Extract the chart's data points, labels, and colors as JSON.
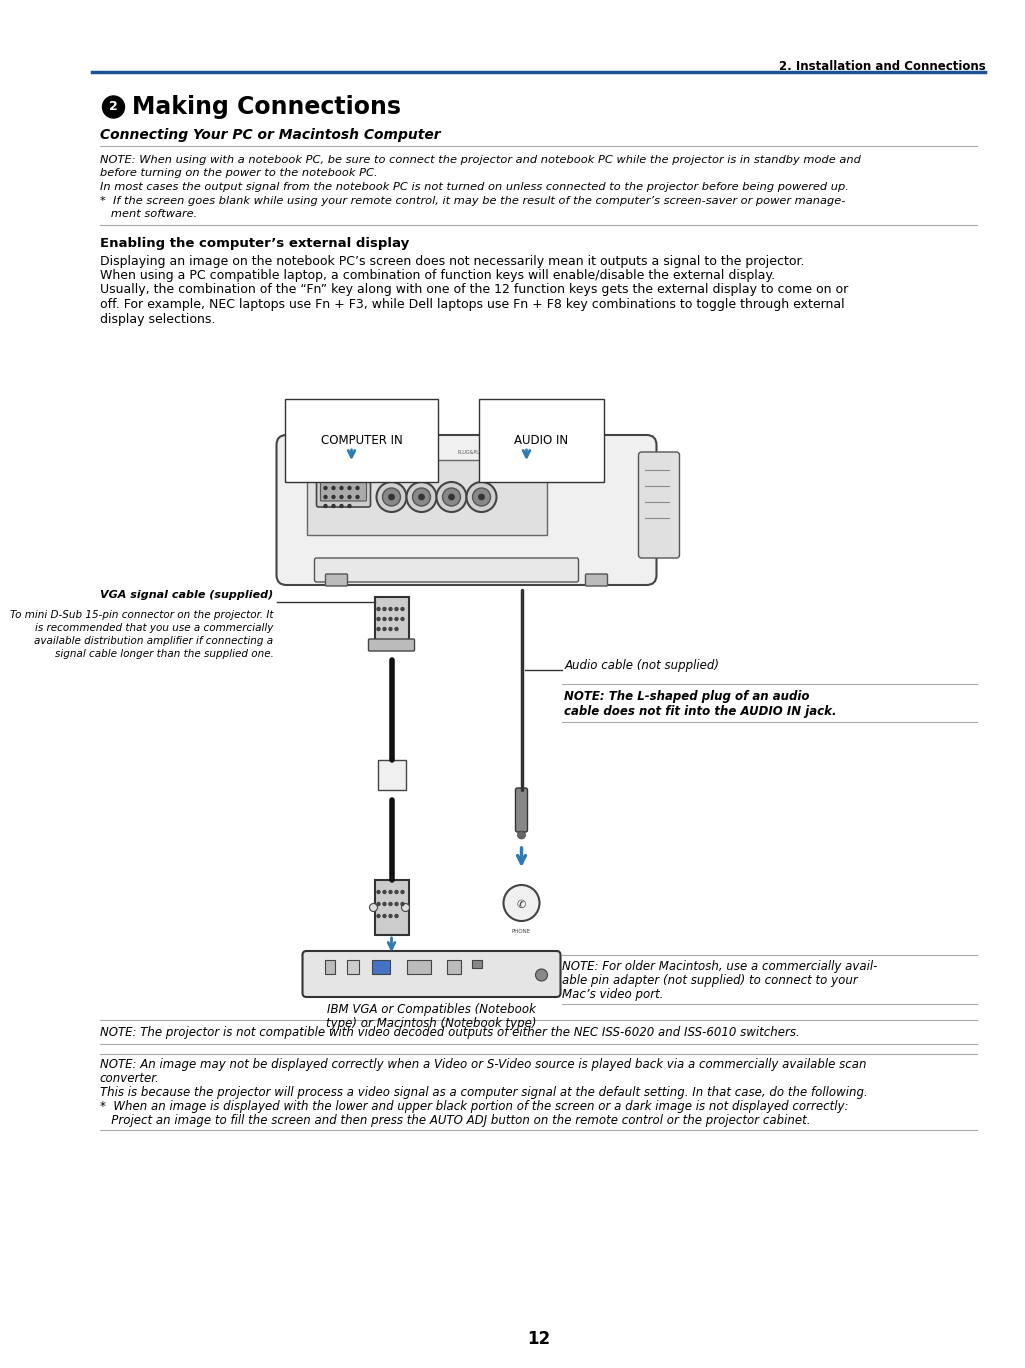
{
  "header_right": "2. Installation and Connections",
  "header_line_color": "#1a5294",
  "title": "❙ Making Connections",
  "subtitle": "Connecting Your PC or Macintosh Computer",
  "note1_lines": [
    "NOTE: When using with a notebook PC, be sure to connect the projector and notebook PC while the projector is in standby mode and",
    "before turning on the power to the notebook PC.",
    "In most cases the output signal from the notebook PC is not turned on unless connected to the projector before being powered up.",
    "*  If the screen goes blank while using your remote control, it may be the result of the computer’s screen-saver or power manage-",
    "   ment software."
  ],
  "section_head": "Enabling the computer’s external display",
  "body_lines": [
    "Displaying an image on the notebook PC’s screen does not necessarily mean it outputs a signal to the projector.",
    "When using a PC compatible laptop, a combination of function keys will enable/disable the external display.",
    "Usually, the combination of the “Fn” key along with one of the 12 function keys gets the external display to come on or",
    "off. For example, NEC laptops use Fn + F3, while Dell laptops use Fn + F8 key combinations to toggle through external",
    "display selections."
  ],
  "label_computer_in": "COMPUTER IN",
  "label_audio_in": "AUDIO IN",
  "vga_label_bold": "VGA signal cable (supplied)",
  "vga_label_lines": [
    "To mini D-Sub 15-pin connector on the projector. It",
    "is recommended that you use a commercially",
    "available distribution amplifier if connecting a",
    "signal cable longer than the supplied one."
  ],
  "audio_label": "Audio cable (not supplied)",
  "audio_note_lines": [
    "NOTE: The L-shaped plug of an audio",
    "cable does not fit into the AUDIO IN jack."
  ],
  "ibm_label_lines": [
    "IBM VGA or Compatibles (Notebook",
    "type) or Macintosh (Notebook type)"
  ],
  "mac_note_lines": [
    "NOTE: For older Macintosh, use a commercially avail-",
    "able pin adapter (not supplied) to connect to your",
    "Mac’s video port."
  ],
  "note_switcher": "NOTE: The projector is not compatible with video decoded outputs of either the NEC ISS-6020 and ISS-6010 switchers.",
  "note_scan_lines": [
    "NOTE: An image may not be displayed correctly when a Video or S-Video source is played back via a commercially available scan",
    "converter.",
    "This is because the projector will process a video signal as a computer signal at the default setting. In that case, do the following.",
    "*  When an image is displayed with the lower and upper black portion of the screen or a dark image is not displayed correctly:",
    "   Project an image to fill the screen and then press the AUTO ADJ button on the remote control or the projector cabinet."
  ],
  "page_number": "12",
  "bg_color": "#ffffff",
  "text_color": "#000000",
  "blue_color": "#1a5294",
  "arrow_color": "#2e7ab5",
  "gray_line_color": "#aaaaaa",
  "proj_fill": "#f0f0f0",
  "proj_edge": "#444444"
}
